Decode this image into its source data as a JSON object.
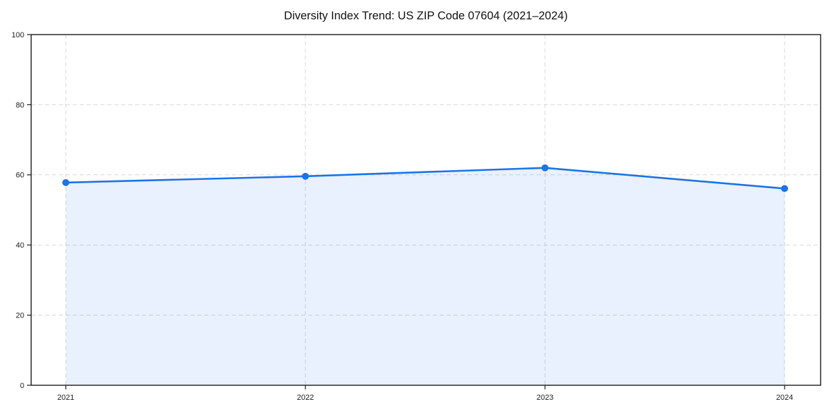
{
  "title": "Diversity Index Trend: US ZIP Code 07604 (2021–2024)",
  "chart_data": {
    "type": "area",
    "title": "Diversity Index Trend: US ZIP Code 07604 (2021–2024)",
    "categories": [
      "2021",
      "2022",
      "2023",
      "2024"
    ],
    "series": [
      {
        "name": "Diversity Index",
        "values": [
          57.8,
          59.6,
          62.0,
          56.1
        ]
      }
    ],
    "xlabel": "",
    "ylabel": "",
    "ylim": [
      0,
      100
    ],
    "yticks": [
      0,
      20,
      40,
      60,
      80,
      100
    ],
    "grid": true,
    "grid_style": "dashed",
    "legend": "none",
    "colors": {
      "line": "#1a73e8",
      "marker": "#1a73e8",
      "fill": "#1a73e8",
      "fill_opacity": 0.1,
      "grid": "#d9d9d9",
      "axis": "#1a1a1a",
      "tick_label": "#1a1a1a",
      "background": "#ffffff"
    },
    "line_width": 2.6,
    "marker_radius": 5
  }
}
